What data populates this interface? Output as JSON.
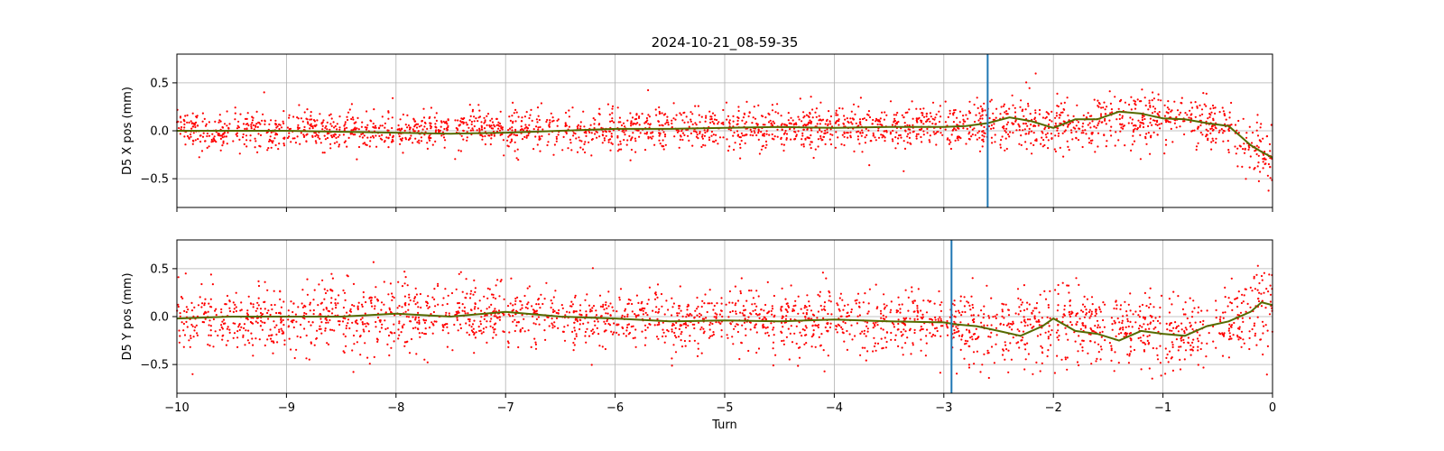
{
  "chart_data": [
    {
      "type": "scatter",
      "title": "2024-10-21_08-59-35",
      "xlabel": "",
      "ylabel": "D5 X pos (mm)",
      "xlim": [
        -10,
        0
      ],
      "ylim": [
        -0.8,
        0.8
      ],
      "grid": true,
      "x_ticks": [
        -10,
        -9,
        -8,
        -7,
        -6,
        -5,
        -4,
        -3,
        -2,
        -1,
        0
      ],
      "y_ticks": [
        -0.5,
        0.0,
        0.5
      ],
      "y_tick_labels": [
        "−0.5",
        "0.0",
        "0.5"
      ],
      "x_tick_labels": [],
      "gap_positions": [
        -9.5,
        -9,
        -8.5,
        -8,
        -7.5,
        -7,
        -6.5,
        -6,
        -5.5,
        -5,
        -4.5,
        -4,
        -3.5,
        -3,
        -2.5,
        -2,
        -1.5,
        -1,
        -0.5
      ],
      "scatter_color": "#ff0000",
      "trend_color": "#556b00",
      "marker_color": "#1f77b4",
      "vertical_marker_x": -2.6,
      "mean_trend": {
        "x": [
          -10,
          -9.5,
          -9,
          -8.5,
          -8,
          -7.5,
          -7,
          -6.5,
          -6,
          -5.5,
          -5,
          -4.5,
          -4,
          -3.5,
          -3,
          -2.8,
          -2.6,
          -2.4,
          -2.2,
          -2.0,
          -1.8,
          -1.6,
          -1.4,
          -1.2,
          -1.0,
          -0.8,
          -0.6,
          -0.4,
          -0.3,
          -0.2,
          -0.1,
          0
        ],
        "y": [
          0.0,
          0.0,
          0.0,
          -0.01,
          -0.02,
          -0.03,
          -0.02,
          0.0,
          0.02,
          0.02,
          0.03,
          0.04,
          0.03,
          0.04,
          0.04,
          0.05,
          0.08,
          0.14,
          0.1,
          0.03,
          0.12,
          0.12,
          0.2,
          0.18,
          0.13,
          0.12,
          0.08,
          0.05,
          -0.05,
          -0.15,
          -0.22,
          -0.28
        ]
      },
      "spread_envelope": {
        "x": [
          -10,
          -3.0,
          -2.8,
          -2.6,
          -2.0,
          -1.0,
          -0.5,
          -0.3,
          0
        ],
        "mean": [
          0.0,
          0.04,
          0.05,
          0.1,
          0.05,
          0.15,
          0.08,
          -0.1,
          -0.3
        ],
        "sd": [
          0.1,
          0.11,
          0.13,
          0.14,
          0.14,
          0.13,
          0.12,
          0.15,
          0.17
        ]
      }
    },
    {
      "type": "scatter",
      "title": "",
      "xlabel": "Turn",
      "ylabel": "D5 Y pos (mm)",
      "xlim": [
        -10,
        0
      ],
      "ylim": [
        -0.8,
        0.8
      ],
      "grid": true,
      "x_ticks": [
        -10,
        -9,
        -8,
        -7,
        -6,
        -5,
        -4,
        -3,
        -2,
        -1,
        0
      ],
      "x_tick_labels": [
        "−10",
        "−9",
        "−8",
        "−7",
        "−6",
        "−5",
        "−4",
        "−3",
        "−2",
        "−1",
        "0"
      ],
      "y_ticks": [
        -0.5,
        0.0,
        0.5
      ],
      "y_tick_labels": [
        "−0.5",
        "0.0",
        "0.5"
      ],
      "gap_positions": [
        -9.5,
        -9,
        -8.5,
        -8,
        -7.5,
        -7,
        -6.5,
        -6,
        -5.5,
        -5,
        -4.5,
        -4,
        -3.5,
        -3,
        -2.5,
        -2,
        -1.5,
        -1,
        -0.5
      ],
      "scatter_color": "#ff0000",
      "trend_color": "#556b00",
      "marker_color": "#1f77b4",
      "vertical_marker_x": -2.93,
      "mean_trend": {
        "x": [
          -10,
          -9.5,
          -9,
          -8.5,
          -8,
          -7.5,
          -7,
          -6.5,
          -6,
          -5.5,
          -5,
          -4.5,
          -4,
          -3.5,
          -3,
          -2.9,
          -2.7,
          -2.5,
          -2.3,
          -2.1,
          -2.0,
          -1.8,
          -1.6,
          -1.4,
          -1.2,
          -1.0,
          -0.8,
          -0.6,
          -0.4,
          -0.2,
          -0.1,
          0
        ],
        "y": [
          -0.02,
          0.0,
          0.0,
          0.0,
          0.03,
          0.0,
          0.05,
          0.0,
          -0.02,
          -0.05,
          -0.04,
          -0.05,
          -0.03,
          -0.05,
          -0.06,
          -0.08,
          -0.1,
          -0.15,
          -0.2,
          -0.1,
          -0.02,
          -0.15,
          -0.18,
          -0.25,
          -0.15,
          -0.18,
          -0.2,
          -0.1,
          -0.05,
          0.05,
          0.15,
          0.12
        ]
      },
      "spread_envelope": {
        "x": [
          -10,
          -8,
          -7,
          -6,
          -3.0,
          -2.6,
          -2.0,
          -1.0,
          -0.3,
          0
        ],
        "mean": [
          -0.02,
          0.01,
          0.03,
          -0.03,
          -0.06,
          -0.15,
          -0.05,
          -0.2,
          -0.05,
          0.2
        ],
        "sd": [
          0.16,
          0.18,
          0.17,
          0.15,
          0.16,
          0.2,
          0.2,
          0.18,
          0.2,
          0.22
        ]
      }
    }
  ]
}
